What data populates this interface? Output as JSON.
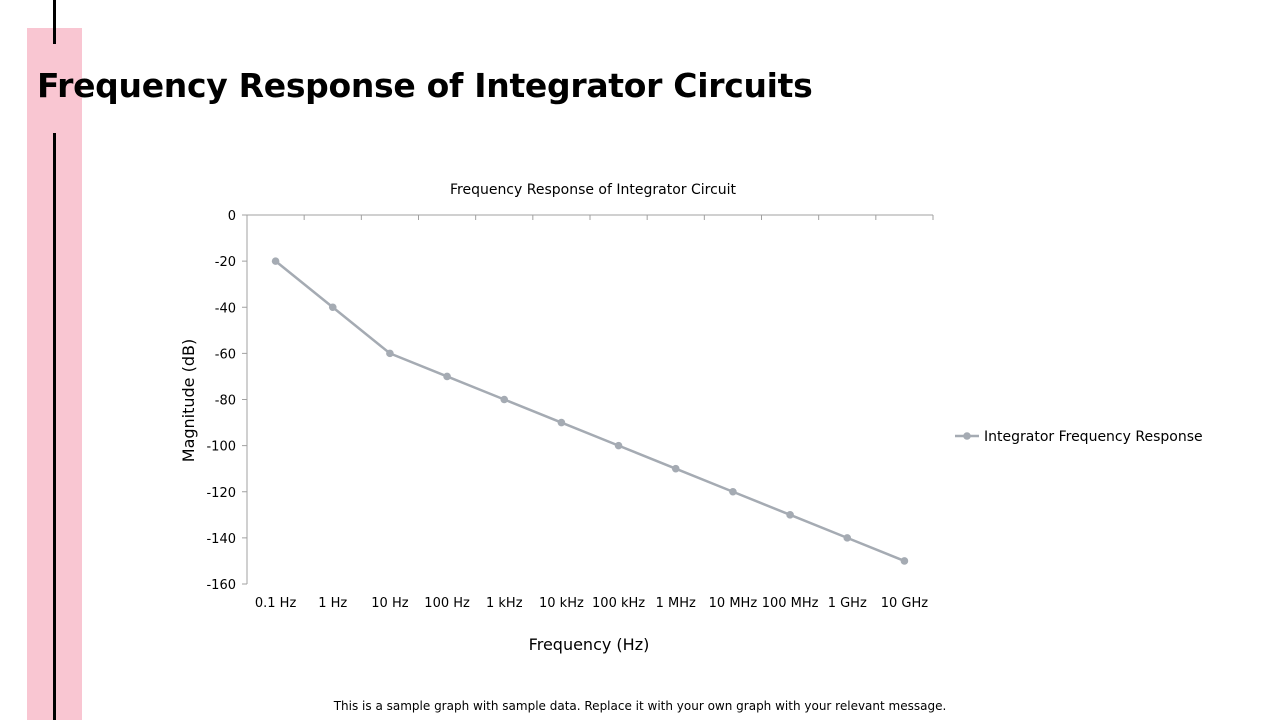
{
  "slide": {
    "title": "Frequency Response of Integrator Circuits",
    "footer": "This is a sample graph with sample data. Replace it with your own graph with your relevant message."
  },
  "colors": {
    "accent_bar": "#f9c6d2",
    "series_line": "#a5abb3",
    "axis": "#a0a0a0"
  },
  "chart_data": {
    "type": "line",
    "title": "Frequency Response of Integrator Circuit",
    "xlabel": "Frequency (Hz)",
    "ylabel": "Magnitude (dB)",
    "categories": [
      "0.1 Hz",
      "1 Hz",
      "10 Hz",
      "100 Hz",
      "1 kHz",
      "10 kHz",
      "100 kHz",
      "1 MHz",
      "10 MHz",
      "100 MHz",
      "1 GHz",
      "10 GHz"
    ],
    "series": [
      {
        "name": "Integrator Frequency Response",
        "values": [
          -20,
          -40,
          -60,
          -70,
          -80,
          -90,
          -100,
          -110,
          -120,
          -130,
          -140,
          -150
        ]
      }
    ],
    "ylim": [
      -160,
      0
    ],
    "yticks": [
      0,
      -20,
      -40,
      -60,
      -80,
      -100,
      -120,
      -140,
      -160
    ],
    "grid": false,
    "legend_position": "right"
  }
}
